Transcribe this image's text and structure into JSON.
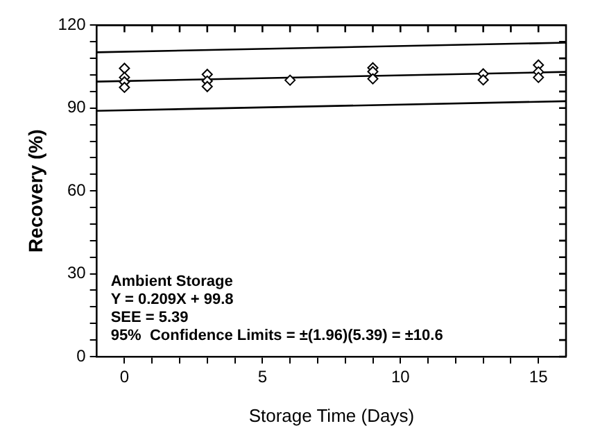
{
  "chart_data": {
    "type": "scatter",
    "xlabel": "Storage Time (Days)",
    "ylabel": "Recovery (%)",
    "xlim": [
      -1,
      16
    ],
    "ylim": [
      0,
      120
    ],
    "xticks": [
      {
        "value": 0,
        "label": "0"
      },
      {
        "value": 1,
        "label": null
      },
      {
        "value": 2,
        "label": null
      },
      {
        "value": 3,
        "label": null
      },
      {
        "value": 4,
        "label": null
      },
      {
        "value": 5,
        "label": "5"
      },
      {
        "value": 6,
        "label": null
      },
      {
        "value": 7,
        "label": null
      },
      {
        "value": 8,
        "label": null
      },
      {
        "value": 9,
        "label": null
      },
      {
        "value": 10,
        "label": "10"
      },
      {
        "value": 11,
        "label": null
      },
      {
        "value": 12,
        "label": null
      },
      {
        "value": 13,
        "label": null
      },
      {
        "value": 14,
        "label": null
      },
      {
        "value": 15,
        "label": "15"
      }
    ],
    "yticks": [
      {
        "value": 0,
        "label": "0"
      },
      {
        "value": 6,
        "label": null
      },
      {
        "value": 12,
        "label": null
      },
      {
        "value": 18,
        "label": null
      },
      {
        "value": 24,
        "label": null
      },
      {
        "value": 30,
        "label": "30"
      },
      {
        "value": 36,
        "label": null
      },
      {
        "value": 42,
        "label": null
      },
      {
        "value": 48,
        "label": null
      },
      {
        "value": 54,
        "label": null
      },
      {
        "value": 60,
        "label": "60"
      },
      {
        "value": 66,
        "label": null
      },
      {
        "value": 72,
        "label": null
      },
      {
        "value": 78,
        "label": null
      },
      {
        "value": 84,
        "label": null
      },
      {
        "value": 90,
        "label": "90"
      },
      {
        "value": 96,
        "label": null
      },
      {
        "value": 102,
        "label": null
      },
      {
        "value": 108,
        "label": null
      },
      {
        "value": 114,
        "label": null
      },
      {
        "value": 120,
        "label": "120"
      }
    ],
    "grid": false,
    "legend": false,
    "series": [
      {
        "type": "scatter",
        "marker": "diamond",
        "color": "#000000",
        "x": [
          0,
          0,
          0,
          0,
          3,
          3,
          3,
          6,
          9,
          9,
          9,
          13,
          13,
          15,
          15,
          15
        ],
        "values": [
          104.4,
          101.1,
          99.5,
          97.5,
          102.2,
          99.8,
          97.8,
          100.1,
          104.6,
          103.2,
          100.6,
          102.4,
          100.2,
          105.6,
          103.1,
          101.1
        ]
      },
      {
        "type": "line",
        "marker": "none",
        "line_style": "solid",
        "color": "#000000",
        "x": [
          -1,
          16
        ],
        "values": [
          99.6,
          103.1
        ]
      },
      {
        "type": "line",
        "marker": "none",
        "line_style": "solid",
        "color": "#000000",
        "x": [
          -1,
          16
        ],
        "values": [
          110.2,
          113.7
        ]
      },
      {
        "type": "line",
        "marker": "none",
        "line_style": "solid",
        "color": "#000000",
        "x": [
          -1,
          16
        ],
        "values": [
          89,
          92.5
        ]
      }
    ],
    "annotations": [
      "Ambient Storage",
      "Y = 0.209X + 99.8",
      "SEE = 5.39",
      "95%  Confidence Limits = ±(1.96)(5.39) = ±10.6"
    ]
  }
}
